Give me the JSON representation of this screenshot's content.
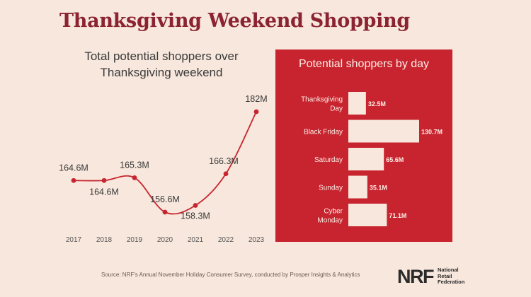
{
  "title": "Thanksgiving Weekend Shopping",
  "colors": {
    "background": "#f7e7dc",
    "accent": "#c8242f",
    "title": "#8b2332",
    "bar_fill": "#f7e7dc"
  },
  "chart_data": [
    {
      "type": "line",
      "title": "Total potential shoppers over Thanksgiving weekend",
      "x": [
        "2017",
        "2018",
        "2019",
        "2020",
        "2021",
        "2022",
        "2023"
      ],
      "values": [
        164.6,
        164.6,
        165.3,
        156.6,
        158.3,
        166.3,
        182
      ],
      "labels": [
        "164.6M",
        "164.6M",
        "165.3M",
        "156.6M",
        "158.3M",
        "166.3M",
        "182M"
      ],
      "units": "millions of shoppers",
      "xlabel": "",
      "ylabel": "",
      "grid": false
    },
    {
      "type": "bar",
      "orientation": "horizontal",
      "title": "Potential shoppers by day",
      "categories": [
        "Thanksgiving Day",
        "Black Friday",
        "Saturday",
        "Sunday",
        "Cyber Monday"
      ],
      "category_lines": [
        [
          "Thanksgiving",
          "Day"
        ],
        [
          "Black Friday"
        ],
        [
          "Saturday"
        ],
        [
          "Sunday"
        ],
        [
          "Cyber",
          "Monday"
        ]
      ],
      "values": [
        32.5,
        130.7,
        65.6,
        35.1,
        71.1
      ],
      "labels": [
        "32.5M",
        "130.7M",
        "65.6M",
        "35.1M",
        "71.1M"
      ],
      "units": "millions of shoppers",
      "xlim": [
        0,
        130.7
      ]
    }
  ],
  "source": "Source: NRF's Annual November Holiday Consumer Survey, conducted by Prosper Insights & Analytics",
  "logo": {
    "mark": "NRF",
    "lines": [
      "National",
      "Retail",
      "Federation"
    ]
  }
}
